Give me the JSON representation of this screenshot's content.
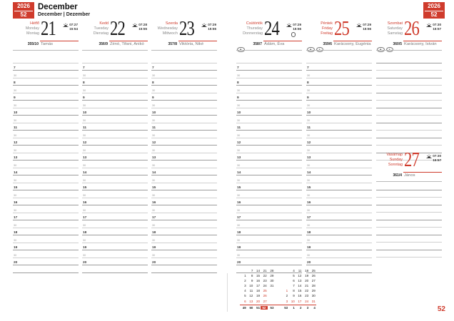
{
  "accent": "#cf3b2c",
  "badge": {
    "year": "2026",
    "week": "52"
  },
  "header": {
    "title": "December",
    "subtitle": "December | Dezember"
  },
  "page_number": "52",
  "time_grid": {
    "hours": [
      "7",
      "8",
      "9",
      "10",
      "11",
      "12",
      "13",
      "14",
      "15",
      "16",
      "17",
      "18",
      "19",
      "20"
    ],
    "half_label": "30"
  },
  "days": [
    {
      "key": "monday",
      "names": [
        "Hétfő",
        "Monday",
        "Montag"
      ],
      "date": "21",
      "sunrise": "07:27",
      "sunset": "15:54",
      "day_of_year": "355/10",
      "namedays": "Tamás",
      "date_red": false,
      "names_all_red": false,
      "holiday_icons": 0,
      "moon": false
    },
    {
      "key": "tuesday",
      "names": [
        "Kedd",
        "Tuesday",
        "Dienstag"
      ],
      "date": "22",
      "sunrise": "07:28",
      "sunset": "15:55",
      "day_of_year": "356/9",
      "namedays": "Zénó, Tifani, Anikó",
      "date_red": false,
      "names_all_red": false,
      "holiday_icons": 0,
      "moon": false
    },
    {
      "key": "wednesday",
      "names": [
        "Szerda",
        "Wednesday",
        "Mittwoch"
      ],
      "date": "23",
      "sunrise": "07:29",
      "sunset": "15:55",
      "day_of_year": "357/8",
      "namedays": "Viktória, Niké",
      "date_red": false,
      "names_all_red": false,
      "holiday_icons": 0,
      "moon": false
    },
    {
      "key": "thursday",
      "names": [
        "Csütörtök",
        "Thursday",
        "Donnerstag"
      ],
      "date": "24",
      "sunrise": "07:29",
      "sunset": "15:56",
      "day_of_year": "358/7",
      "namedays": "Ádám, Éva",
      "date_red": false,
      "names_all_red": false,
      "holiday_icons": 1,
      "moon": true
    },
    {
      "key": "friday",
      "names": [
        "Péntek",
        "Friday",
        "Freitag"
      ],
      "date": "25",
      "sunrise": "07:29",
      "sunset": "15:56",
      "day_of_year": "359/6",
      "namedays": "Karácsony, Eugénia",
      "date_red": true,
      "names_all_red": true,
      "holiday_icons": 2,
      "moon": false
    },
    {
      "key": "saturday",
      "names": [
        "Szombat",
        "Saturday",
        "Samstag"
      ],
      "date": "26",
      "sunrise": "07:30",
      "sunset": "15:57",
      "day_of_year": "360/5",
      "namedays": "Karácsony, István",
      "date_red": true,
      "names_all_red": false,
      "holiday_icons": 2,
      "moon": false
    },
    {
      "key": "sunday",
      "names": [
        "Vasárnap",
        "Sunday",
        "Sonntag"
      ],
      "date": "27",
      "sunrise": "07:30",
      "sunset": "15:57",
      "day_of_year": "361/4",
      "namedays": "János",
      "date_red": true,
      "names_all_red": true,
      "holiday_icons": 0,
      "moon": false
    }
  ],
  "mini_calendar": {
    "months": [
      {
        "name": "december",
        "rows": [
          [
            "",
            "7",
            "14",
            "21",
            "28"
          ],
          [
            "1",
            "8",
            "15",
            "22",
            "29"
          ],
          [
            "2",
            "9",
            "16",
            "23",
            "30"
          ],
          [
            "3",
            "10",
            "17",
            "24",
            "31"
          ],
          [
            "4",
            "11",
            "18",
            "25",
            ""
          ],
          [
            "5",
            "12",
            "19",
            "26",
            ""
          ],
          [
            "6",
            "13",
            "20",
            "27",
            ""
          ]
        ],
        "red_cells": [
          [
            4,
            3
          ],
          [
            5,
            3
          ],
          [
            6,
            0
          ],
          [
            6,
            1
          ],
          [
            6,
            2
          ],
          [
            6,
            3
          ]
        ]
      },
      {
        "name": "january",
        "rows": [
          [
            "",
            "4",
            "11",
            "18",
            "25"
          ],
          [
            "",
            "5",
            "12",
            "19",
            "26"
          ],
          [
            "",
            "6",
            "13",
            "20",
            "27"
          ],
          [
            "",
            "7",
            "14",
            "21",
            "28"
          ],
          [
            "1",
            "8",
            "15",
            "22",
            "29"
          ],
          [
            "2",
            "9",
            "16",
            "23",
            "30"
          ],
          [
            "3",
            "10",
            "17",
            "24",
            "31"
          ]
        ],
        "red_cells": [
          [
            4,
            0
          ],
          [
            6,
            0
          ],
          [
            6,
            1
          ],
          [
            6,
            2
          ],
          [
            6,
            3
          ],
          [
            6,
            4
          ]
        ]
      }
    ],
    "week_numbers": [
      "49",
      "50",
      "51",
      "52",
      "53",
      "53",
      "1",
      "2",
      "3",
      "4"
    ],
    "current_week": "52"
  }
}
